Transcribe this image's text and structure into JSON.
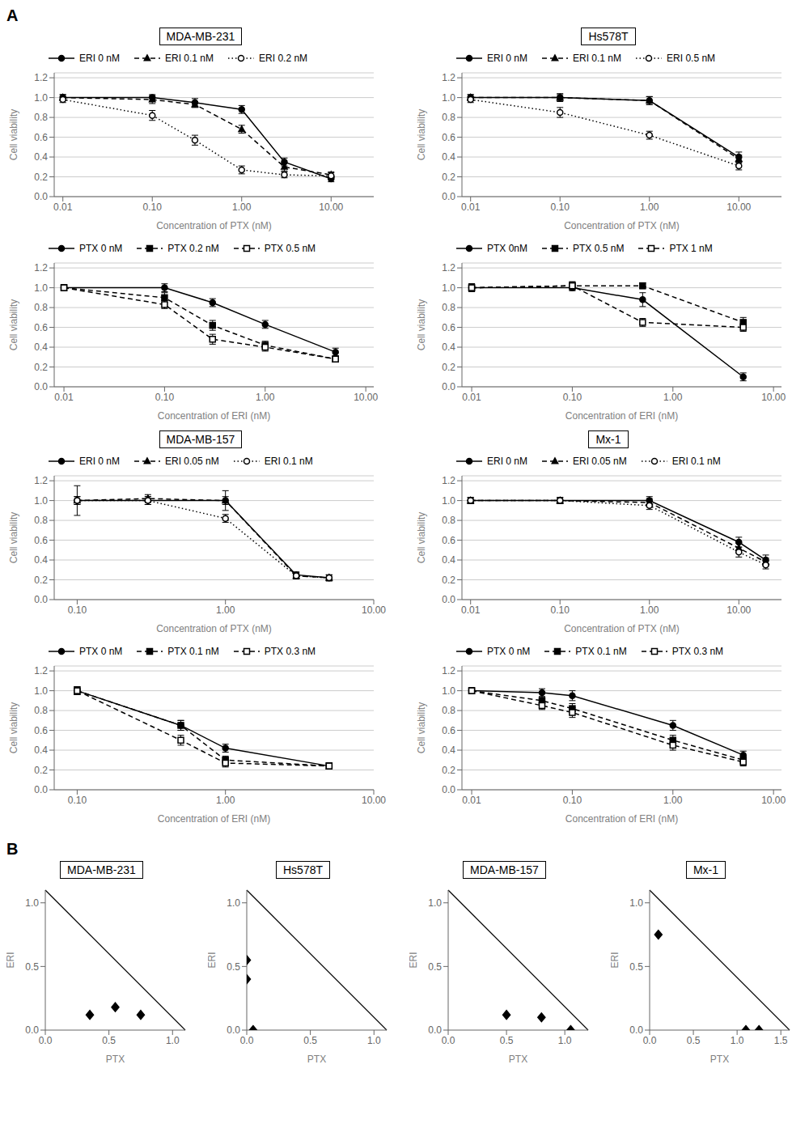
{
  "chart_data": [
    {
      "type": "line",
      "title": "MDA-MB-231",
      "annotations": [
        "A"
      ],
      "x_label": "Concentration of PTX (nM)",
      "y_label": "Cell viability",
      "log": "x",
      "grid": true,
      "legend": "top",
      "x": [
        0.01,
        0.1,
        0.3,
        1.0,
        3.0,
        10.0
      ],
      "xlim": [
        0.008,
        30
      ],
      "xticks": [
        0.01,
        {
          "value": 0.1,
          "label": "0.10"
        },
        {
          "value": 1,
          "label": "1.00"
        },
        {
          "value": 10,
          "label": "10.00"
        }
      ],
      "ylim": [
        0,
        1.25
      ],
      "yticks": [
        {
          "value": 0,
          "label": "0.0"
        },
        0.2,
        0.4,
        0.6,
        0.8,
        {
          "value": 1,
          "label": "1.0"
        },
        1.2
      ],
      "series": [
        {
          "name": "ERI 0 nM",
          "color": "#000000",
          "marker": "circle",
          "line_style": "solid",
          "values": [
            1.0,
            1.0,
            0.95,
            0.88,
            0.35,
            0.18
          ],
          "errors": [
            0.03,
            0.03,
            0.04,
            0.04,
            0.04,
            0.03
          ]
        },
        {
          "name": "ERI 0.1 nM",
          "color": "#000000",
          "marker": "triangle",
          "line_style": "dashed",
          "values": [
            1.0,
            0.98,
            0.93,
            0.68,
            0.3,
            0.22
          ],
          "errors": [
            0.03,
            0.04,
            0.03,
            0.04,
            0.04,
            0.03
          ]
        },
        {
          "name": "ERI 0.2 nM",
          "color": "#000000",
          "marker": "circle_open",
          "line_style": "dotted",
          "values": [
            0.98,
            0.82,
            0.57,
            0.27,
            0.22,
            0.21
          ],
          "errors": [
            0.03,
            0.05,
            0.05,
            0.04,
            0.03,
            0.03
          ]
        }
      ]
    },
    {
      "type": "line",
      "title": "Hs578T",
      "x_label": "Concentration of PTX (nM)",
      "y_label": "Cell viability",
      "log": "x",
      "grid": true,
      "legend": "top",
      "x": [
        0.01,
        0.1,
        1.0,
        10.0
      ],
      "xlim": [
        0.008,
        30
      ],
      "xticks": [
        0.01,
        {
          "value": 0.1,
          "label": "0.10"
        },
        {
          "value": 1,
          "label": "1.00"
        },
        {
          "value": 10,
          "label": "10.00"
        }
      ],
      "ylim": [
        0,
        1.25
      ],
      "yticks": [
        {
          "value": 0,
          "label": "0.0"
        },
        0.2,
        0.4,
        0.6,
        0.8,
        {
          "value": 1,
          "label": "1.0"
        },
        1.2
      ],
      "series": [
        {
          "name": "ERI 0 nM",
          "color": "#000000",
          "marker": "circle",
          "line_style": "solid",
          "values": [
            1.0,
            1.0,
            0.97,
            0.4
          ],
          "errors": [
            0.03,
            0.03,
            0.04,
            0.05
          ]
        },
        {
          "name": "ERI 0.1 nM",
          "color": "#000000",
          "marker": "triangle",
          "line_style": "dashed",
          "values": [
            1.0,
            1.0,
            0.97,
            0.38
          ],
          "errors": [
            0.03,
            0.04,
            0.04,
            0.04
          ]
        },
        {
          "name": "ERI 0.5 nM",
          "color": "#000000",
          "marker": "circle_open",
          "line_style": "dotted",
          "values": [
            0.98,
            0.85,
            0.62,
            0.31
          ],
          "errors": [
            0.03,
            0.05,
            0.04,
            0.04
          ]
        }
      ]
    },
    {
      "type": "line",
      "x_label": "Concentration of ERI (nM)",
      "y_label": "Cell viability",
      "log": "x",
      "grid": true,
      "legend": "top",
      "x": [
        0.01,
        0.1,
        0.3,
        1.0,
        5.0
      ],
      "xlim": [
        0.008,
        12
      ],
      "xticks": [
        0.01,
        {
          "value": 0.1,
          "label": "0.10"
        },
        {
          "value": 1,
          "label": "1.00"
        },
        {
          "value": 10,
          "label": "10.00"
        }
      ],
      "ylim": [
        0,
        1.25
      ],
      "yticks": [
        {
          "value": 0,
          "label": "0.0"
        },
        0.2,
        0.4,
        0.6,
        0.8,
        {
          "value": 1,
          "label": "1.0"
        },
        1.2
      ],
      "series": [
        {
          "name": "PTX 0 nM",
          "color": "#000000",
          "marker": "circle",
          "line_style": "solid",
          "values": [
            1.0,
            1.0,
            0.85,
            0.63,
            0.35
          ],
          "errors": [
            0.03,
            0.04,
            0.04,
            0.04,
            0.04
          ]
        },
        {
          "name": "PTX 0.2 nM",
          "color": "#000000",
          "marker": "square",
          "line_style": "dashed",
          "values": [
            1.0,
            0.9,
            0.62,
            0.42,
            0.28
          ],
          "errors": [
            0.03,
            0.05,
            0.05,
            0.04,
            0.03
          ]
        },
        {
          "name": "PTX 0.5 nM",
          "color": "#000000",
          "marker": "square_open",
          "line_style": "dashed",
          "values": [
            1.0,
            0.83,
            0.48,
            0.4,
            0.28
          ],
          "errors": [
            0.03,
            0.04,
            0.05,
            0.04,
            0.03
          ]
        }
      ]
    },
    {
      "type": "line",
      "x_label": "Concentration of ERI (nM)",
      "y_label": "Cell viability",
      "log": "x",
      "grid": true,
      "legend": "top",
      "x": [
        0.01,
        0.1,
        0.5,
        5.0
      ],
      "xlim": [
        0.008,
        12
      ],
      "xticks": [
        0.01,
        {
          "value": 0.1,
          "label": "0.10"
        },
        {
          "value": 1,
          "label": "1.00"
        },
        {
          "value": 10,
          "label": "10.00"
        }
      ],
      "ylim": [
        0,
        1.25
      ],
      "yticks": [
        {
          "value": 0,
          "label": "0.0"
        },
        0.2,
        0.4,
        0.6,
        0.8,
        {
          "value": 1,
          "label": "1.0"
        },
        1.2
      ],
      "series": [
        {
          "name": "PTX 0nM",
          "color": "#000000",
          "marker": "circle",
          "line_style": "solid",
          "values": [
            1.0,
            1.0,
            0.88,
            0.1
          ],
          "errors": [
            0.04,
            0.03,
            0.07,
            0.04
          ]
        },
        {
          "name": "PTX 0.5 nM",
          "color": "#000000",
          "marker": "square",
          "line_style": "dashed",
          "values": [
            1.0,
            1.02,
            1.02,
            0.65
          ],
          "errors": [
            0.04,
            0.04,
            0.03,
            0.05
          ]
        },
        {
          "name": "PTX 1 nM",
          "color": "#000000",
          "marker": "square_open",
          "line_style": "dashed",
          "values": [
            1.0,
            1.02,
            0.65,
            0.6
          ],
          "errors": [
            0.04,
            0.04,
            0.04,
            0.04
          ]
        }
      ]
    },
    {
      "type": "line",
      "title": "MDA-MB-157",
      "x_label": "Concentration of PTX (nM)",
      "y_label": "Cell viability",
      "log": "x",
      "grid": true,
      "legend": "top",
      "x": [
        0.1,
        0.3,
        1.0,
        3.0,
        5.0
      ],
      "xlim": [
        0.07,
        10
      ],
      "xticks": [
        {
          "value": 0.1,
          "label": "0.10"
        },
        {
          "value": 1,
          "label": "1.00"
        },
        {
          "value": 10,
          "label": "10.00"
        }
      ],
      "ylim": [
        0,
        1.25
      ],
      "yticks": [
        {
          "value": 0,
          "label": "0.0"
        },
        0.2,
        0.4,
        0.6,
        0.8,
        {
          "value": 1,
          "label": "1.0"
        },
        1.2
      ],
      "series": [
        {
          "name": "ERI 0 nM",
          "color": "#000000",
          "marker": "circle",
          "line_style": "solid",
          "values": [
            1.0,
            1.0,
            1.0,
            0.25,
            0.22
          ],
          "errors": [
            0.15,
            0.04,
            0.1,
            0.03,
            0.03
          ]
        },
        {
          "name": "ERI 0.05 nM",
          "color": "#000000",
          "marker": "triangle",
          "line_style": "dashed",
          "values": [
            1.0,
            1.02,
            1.0,
            0.24,
            0.22
          ],
          "errors": [
            0.04,
            0.04,
            0.04,
            0.03,
            0.03
          ]
        },
        {
          "name": "ERI 0.1 nM",
          "color": "#000000",
          "marker": "circle_open",
          "line_style": "dotted",
          "values": [
            1.0,
            1.0,
            0.82,
            0.24,
            0.22
          ],
          "errors": [
            0.04,
            0.04,
            0.04,
            0.03,
            0.03
          ]
        }
      ]
    },
    {
      "type": "line",
      "title": "Mx-1",
      "x_label": "Concentration of PTX (nM)",
      "y_label": "Cell viability",
      "log": "x",
      "grid": true,
      "legend": "top",
      "x": [
        0.01,
        0.1,
        1.0,
        10.0,
        20.0
      ],
      "xlim": [
        0.008,
        30
      ],
      "xticks": [
        0.01,
        {
          "value": 0.1,
          "label": "0.10"
        },
        {
          "value": 1,
          "label": "1.00"
        },
        {
          "value": 10,
          "label": "10.00"
        }
      ],
      "ylim": [
        0,
        1.25
      ],
      "yticks": [
        {
          "value": 0,
          "label": "0.0"
        },
        0.2,
        0.4,
        0.6,
        0.8,
        {
          "value": 1,
          "label": "1.0"
        },
        1.2
      ],
      "series": [
        {
          "name": "ERI 0 nM",
          "color": "#000000",
          "marker": "circle",
          "line_style": "solid",
          "values": [
            1.0,
            1.0,
            1.0,
            0.58,
            0.4
          ],
          "errors": [
            0.03,
            0.03,
            0.04,
            0.05,
            0.05
          ]
        },
        {
          "name": "ERI 0.05 nM",
          "color": "#000000",
          "marker": "triangle",
          "line_style": "dashed",
          "values": [
            1.0,
            1.0,
            0.98,
            0.52,
            0.38
          ],
          "errors": [
            0.03,
            0.03,
            0.04,
            0.05,
            0.04
          ]
        },
        {
          "name": "ERI 0.1 nM",
          "color": "#000000",
          "marker": "circle_open",
          "line_style": "dotted",
          "values": [
            1.0,
            1.0,
            0.95,
            0.48,
            0.35
          ],
          "errors": [
            0.03,
            0.03,
            0.04,
            0.05,
            0.04
          ]
        }
      ]
    },
    {
      "type": "line",
      "x_label": "Concentration of ERI (nM)",
      "y_label": "Cell viability",
      "log": "x",
      "grid": true,
      "legend": "top",
      "x": [
        0.1,
        0.5,
        1.0,
        5.0
      ],
      "xlim": [
        0.07,
        10
      ],
      "xticks": [
        {
          "value": 0.1,
          "label": "0.10"
        },
        {
          "value": 1,
          "label": "1.00"
        },
        {
          "value": 10,
          "label": "10.00"
        }
      ],
      "ylim": [
        0,
        1.25
      ],
      "yticks": [
        {
          "value": 0,
          "label": "0.0"
        },
        0.2,
        0.4,
        0.6,
        0.8,
        {
          "value": 1,
          "label": "1.0"
        },
        1.2
      ],
      "series": [
        {
          "name": "PTX 0 nM",
          "color": "#000000",
          "marker": "circle",
          "line_style": "solid",
          "values": [
            1.0,
            0.65,
            0.42,
            0.24
          ],
          "errors": [
            0.04,
            0.05,
            0.04,
            0.03
          ]
        },
        {
          "name": "PTX 0.1 nM",
          "color": "#000000",
          "marker": "square",
          "line_style": "dashed",
          "values": [
            1.0,
            0.65,
            0.3,
            0.24
          ],
          "errors": [
            0.04,
            0.05,
            0.04,
            0.03
          ]
        },
        {
          "name": "PTX 0.3 nM",
          "color": "#000000",
          "marker": "square_open",
          "line_style": "dashed",
          "values": [
            1.0,
            0.5,
            0.27,
            0.24
          ],
          "errors": [
            0.04,
            0.05,
            0.04,
            0.03
          ]
        }
      ]
    },
    {
      "type": "line",
      "x_label": "Concentration of ERI (nM)",
      "y_label": "Cell viability",
      "log": "x",
      "grid": true,
      "legend": "top",
      "x": [
        0.01,
        0.05,
        0.1,
        1.0,
        5.0
      ],
      "xlim": [
        0.008,
        12
      ],
      "xticks": [
        0.01,
        {
          "value": 0.1,
          "label": "0.10"
        },
        {
          "value": 1,
          "label": "1.00"
        },
        {
          "value": 10,
          "label": "10.00"
        }
      ],
      "ylim": [
        0,
        1.25
      ],
      "yticks": [
        {
          "value": 0,
          "label": "0.0"
        },
        0.2,
        0.4,
        0.6,
        0.8,
        {
          "value": 1,
          "label": "1.0"
        },
        1.2
      ],
      "series": [
        {
          "name": "PTX 0 nM",
          "color": "#000000",
          "marker": "circle",
          "line_style": "solid",
          "values": [
            1.0,
            0.98,
            0.95,
            0.65,
            0.35
          ],
          "errors": [
            0.03,
            0.04,
            0.05,
            0.05,
            0.04
          ]
        },
        {
          "name": "PTX 0.1 nM",
          "color": "#000000",
          "marker": "square",
          "line_style": "dashed",
          "values": [
            1.0,
            0.9,
            0.82,
            0.5,
            0.3
          ],
          "errors": [
            0.03,
            0.04,
            0.05,
            0.05,
            0.04
          ]
        },
        {
          "name": "PTX 0.3 nM",
          "color": "#000000",
          "marker": "square_open",
          "line_style": "dashed",
          "values": [
            1.0,
            0.85,
            0.78,
            0.45,
            0.28
          ],
          "errors": [
            0.03,
            0.04,
            0.05,
            0.05,
            0.04
          ]
        }
      ]
    },
    {
      "type": "scatter",
      "title": "MDA-MB-231",
      "annotations": [
        "B"
      ],
      "x_label": "PTX",
      "y_label": "ERI",
      "grid": false,
      "marker": "diamond",
      "color": "#000000",
      "x": [
        0.35,
        0.55,
        0.75
      ],
      "values": [
        0.12,
        0.18,
        0.12
      ],
      "reference_line": {
        "x": [
          0,
          1.1
        ],
        "y": [
          1.1,
          0
        ]
      },
      "xlim": [
        0,
        1.1
      ],
      "xticks": [
        {
          "value": 0,
          "label": "0.0"
        },
        0.5,
        {
          "value": 1,
          "label": "1.0"
        }
      ],
      "ylim": [
        0,
        1.1
      ],
      "yticks": [
        {
          "value": 0,
          "label": "0.0"
        },
        0.5,
        {
          "value": 1,
          "label": "1.0"
        }
      ]
    },
    {
      "type": "scatter",
      "title": "Hs578T",
      "x_label": "PTX",
      "y_label": "ERI",
      "grid": false,
      "marker": "diamond",
      "color": "#000000",
      "x": [
        0.0,
        0.0,
        0.05
      ],
      "values": [
        0.55,
        0.4,
        0.0
      ],
      "reference_line": {
        "x": [
          0,
          1.1
        ],
        "y": [
          1.1,
          0
        ]
      },
      "xlim": [
        0,
        1.1
      ],
      "xticks": [
        {
          "value": 0,
          "label": "0.0"
        },
        0.5,
        {
          "value": 1,
          "label": "1.0"
        }
      ],
      "ylim": [
        0,
        1.1
      ],
      "yticks": [
        {
          "value": 0,
          "label": "0.0"
        },
        0.5,
        {
          "value": 1,
          "label": "1.0"
        }
      ]
    },
    {
      "type": "scatter",
      "title": "MDA-MB-157",
      "x_label": "PTX",
      "y_label": "ERI",
      "grid": false,
      "marker": "diamond",
      "color": "#000000",
      "x": [
        0.5,
        0.8,
        1.05
      ],
      "values": [
        0.12,
        0.1,
        0.0
      ],
      "reference_line": {
        "x": [
          0,
          1.2
        ],
        "y": [
          1.1,
          0
        ]
      },
      "xlim": [
        0,
        1.2
      ],
      "xticks": [
        {
          "value": 0,
          "label": "0.0"
        },
        0.5,
        {
          "value": 1,
          "label": "1.0"
        }
      ],
      "ylim": [
        0,
        1.1
      ],
      "yticks": [
        {
          "value": 0,
          "label": "0.0"
        },
        0.5,
        {
          "value": 1,
          "label": "1.0"
        }
      ]
    },
    {
      "type": "scatter",
      "title": "Mx-1",
      "x_label": "PTX",
      "y_label": "ERI",
      "grid": false,
      "marker": "diamond",
      "color": "#000000",
      "x": [
        1.1,
        1.25,
        0.1
      ],
      "values": [
        0.0,
        0.0,
        0.75
      ],
      "reference_line": {
        "x": [
          0,
          1.6
        ],
        "y": [
          1.1,
          0
        ]
      },
      "xlim": [
        0,
        1.6
      ],
      "xticks": [
        {
          "value": 0,
          "label": "0.0"
        },
        0.5,
        {
          "value": 1,
          "label": "1.0"
        },
        1.5
      ],
      "ylim": [
        0,
        1.1
      ],
      "yticks": [
        {
          "value": 0,
          "label": "0.0"
        },
        0.5,
        {
          "value": 1,
          "label": "1.0"
        }
      ]
    }
  ]
}
